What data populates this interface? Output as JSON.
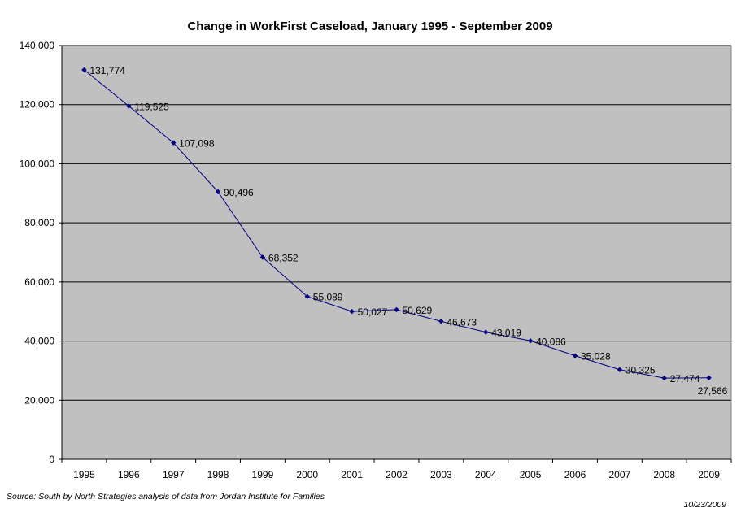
{
  "chart_data": {
    "type": "line",
    "title": "Change in WorkFirst Caseload, January 1995 - September 2009",
    "xlabel": "",
    "ylabel": "",
    "x": [
      "1995",
      "1996",
      "1997",
      "1998",
      "1999",
      "2000",
      "2001",
      "2002",
      "2003",
      "2004",
      "2005",
      "2006",
      "2007",
      "2008",
      "2009"
    ],
    "series": [
      {
        "values": [
          131774,
          119525,
          107098,
          90496,
          68352,
          55089,
          50027,
          50629,
          46673,
          43019,
          40086,
          35028,
          30325,
          27474,
          27566
        ],
        "labels": [
          "131,774",
          "119,525",
          "107,098",
          "90,496",
          "68,352",
          "55,089",
          "50,027",
          "50,629",
          "46,673",
          "43,019",
          "40,086",
          "35,028",
          "30,325",
          "27,474",
          "27,566"
        ],
        "color": "#000080"
      }
    ],
    "ylim": [
      0,
      140000
    ],
    "yticks": [
      0,
      20000,
      40000,
      60000,
      80000,
      100000,
      120000,
      140000
    ],
    "ytick_labels": [
      "0",
      "20,000",
      "40,000",
      "60,000",
      "80,000",
      "100,000",
      "120,000",
      "140,000"
    ],
    "grid": true,
    "legend": "none",
    "plot_background": "#C0C0C0"
  },
  "footer": {
    "source": "Source: South by North Strategies analysis of data from Jordan Institute for Families",
    "date": "10/23/2009"
  }
}
